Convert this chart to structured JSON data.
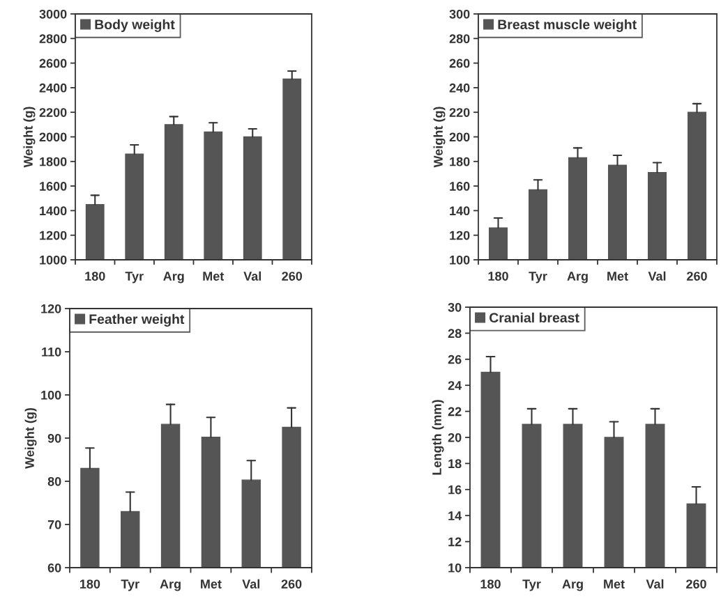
{
  "chart_data": [
    {
      "type": "bar",
      "categories": [
        "180",
        "Tyr",
        "Arg",
        "Met",
        "Val",
        "260"
      ],
      "ylabel": "Weight (g)",
      "ylim": [
        1000,
        3000
      ],
      "yticks": [
        1000,
        1200,
        1400,
        1600,
        1800,
        2000,
        2200,
        2400,
        2600,
        2800,
        3000
      ],
      "legend": "top left",
      "grid": false,
      "series": [
        {
          "name": "Body weight",
          "color": "#555555",
          "values": [
            1450,
            1860,
            2100,
            2040,
            2000,
            2470
          ],
          "errors": [
            [
              1450,
              1525
            ],
            [
              1860,
              1935
            ],
            [
              2100,
              2165
            ],
            [
              2040,
              2115
            ],
            [
              2000,
              2065
            ],
            [
              2470,
              2535
            ]
          ]
        }
      ]
    },
    {
      "type": "bar",
      "categories": [
        "180",
        "Tyr",
        "Arg",
        "Met",
        "Val",
        "260"
      ],
      "ylabel": "Weight (g)",
      "ylim": [
        100,
        300
      ],
      "yticks": [
        100,
        120,
        140,
        160,
        180,
        200,
        220,
        240,
        260,
        280,
        300
      ],
      "legend": "top left",
      "grid": false,
      "series": [
        {
          "name": "Breast muscle weight",
          "color": "#555555",
          "values": [
            126,
            157,
            183,
            177,
            171,
            220
          ],
          "errors": [
            [
              126,
              134
            ],
            [
              157,
              165
            ],
            [
              183,
              191
            ],
            [
              177,
              185
            ],
            [
              171,
              179
            ],
            [
              220,
              227
            ]
          ]
        }
      ]
    },
    {
      "type": "bar",
      "categories": [
        "180",
        "Tyr",
        "Arg",
        "Met",
        "Val",
        "260"
      ],
      "ylabel": "Weight (g)",
      "ylim": [
        60,
        120
      ],
      "yticks": [
        60,
        70,
        80,
        90,
        100,
        110,
        120
      ],
      "legend": "top left",
      "grid": false,
      "series": [
        {
          "name": "Feather weight",
          "color": "#555555",
          "values": [
            83,
            73,
            93.2,
            90.2,
            80.3,
            92.5
          ],
          "errors": [
            [
              83,
              87.7
            ],
            [
              73,
              77.5
            ],
            [
              93.2,
              97.8
            ],
            [
              90.2,
              94.8
            ],
            [
              80.3,
              84.8
            ],
            [
              92.5,
              97
            ]
          ]
        }
      ]
    },
    {
      "type": "bar",
      "categories": [
        "180",
        "Tyr",
        "Arg",
        "Met",
        "Val",
        "260"
      ],
      "ylabel": "Length (mm)",
      "ylim": [
        10,
        30
      ],
      "yticks": [
        10,
        12,
        14,
        16,
        18,
        20,
        22,
        24,
        26,
        28,
        30
      ],
      "legend": "top left",
      "grid": false,
      "series": [
        {
          "name": "Cranial breast",
          "color": "#555555",
          "values": [
            25,
            21,
            21,
            20,
            21,
            14.9
          ],
          "errors": [
            [
              25,
              26.2
            ],
            [
              21,
              22.2
            ],
            [
              21,
              22.2
            ],
            [
              20,
              21.2
            ],
            [
              21,
              22.2
            ],
            [
              14.9,
              16.2
            ]
          ]
        }
      ]
    }
  ]
}
